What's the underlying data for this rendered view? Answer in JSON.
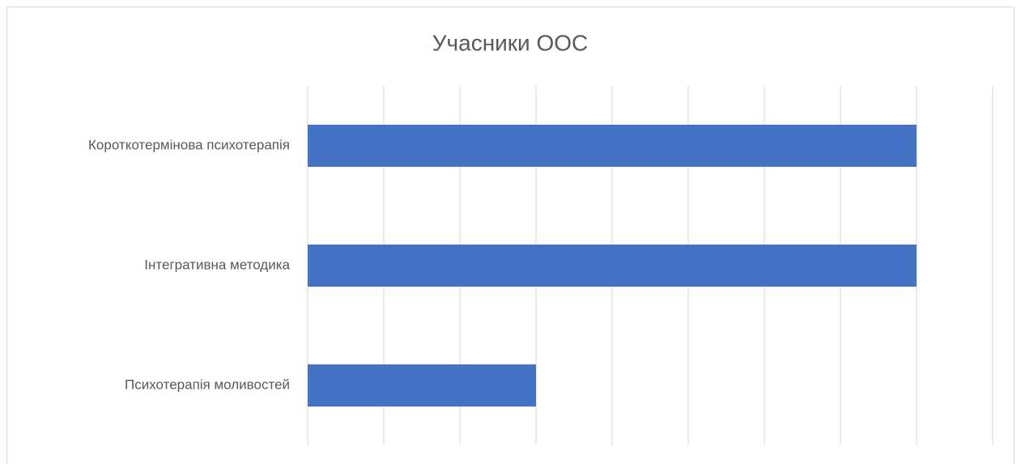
{
  "chart_data": {
    "type": "bar",
    "orientation": "horizontal",
    "title": "Учасники ООС",
    "categories": [
      "Короткотермінова психотерапія",
      "Інтегративна методика",
      "Психотерапія моливостей"
    ],
    "values": [
      8,
      8,
      3
    ],
    "color": "#4472c4",
    "xlim": [
      0,
      9
    ],
    "xticks": [
      0,
      1,
      2,
      3,
      4,
      5,
      6,
      7,
      8,
      9
    ],
    "grid": true
  }
}
